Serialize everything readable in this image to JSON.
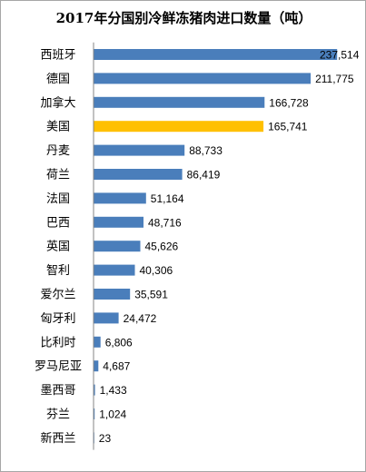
{
  "chart_data": {
    "type": "bar",
    "orientation": "horizontal",
    "title": "2017年分国别冷鲜冻猪肉进口数量（吨）",
    "categories": [
      "西班牙",
      "德国",
      "加拿大",
      "美国",
      "丹麦",
      "荷兰",
      "法国",
      "巴西",
      "英国",
      "智利",
      "爱尔兰",
      "匈牙利",
      "比利时",
      "罗马尼亚",
      "墨西哥",
      "芬兰",
      "新西兰"
    ],
    "values": [
      237514,
      211775,
      166728,
      165741,
      88733,
      86419,
      51164,
      48716,
      45626,
      40306,
      35591,
      24472,
      6806,
      4687,
      1433,
      1024,
      23
    ],
    "value_labels": [
      "237,514",
      "211,775",
      "166,728",
      "165,741",
      "88,733",
      "86,419",
      "51,164",
      "48,716",
      "45,626",
      "40,306",
      "35,591",
      "24,472",
      "6,806",
      "4,687",
      "1,433",
      "1,024",
      "23"
    ],
    "highlight_category": "美国",
    "colors": {
      "bar": "#4a7ebb",
      "highlight": "#ffc000",
      "axis": "#868686"
    },
    "xlim": [
      0,
      240000
    ],
    "gridlines": false,
    "legend": "none"
  }
}
